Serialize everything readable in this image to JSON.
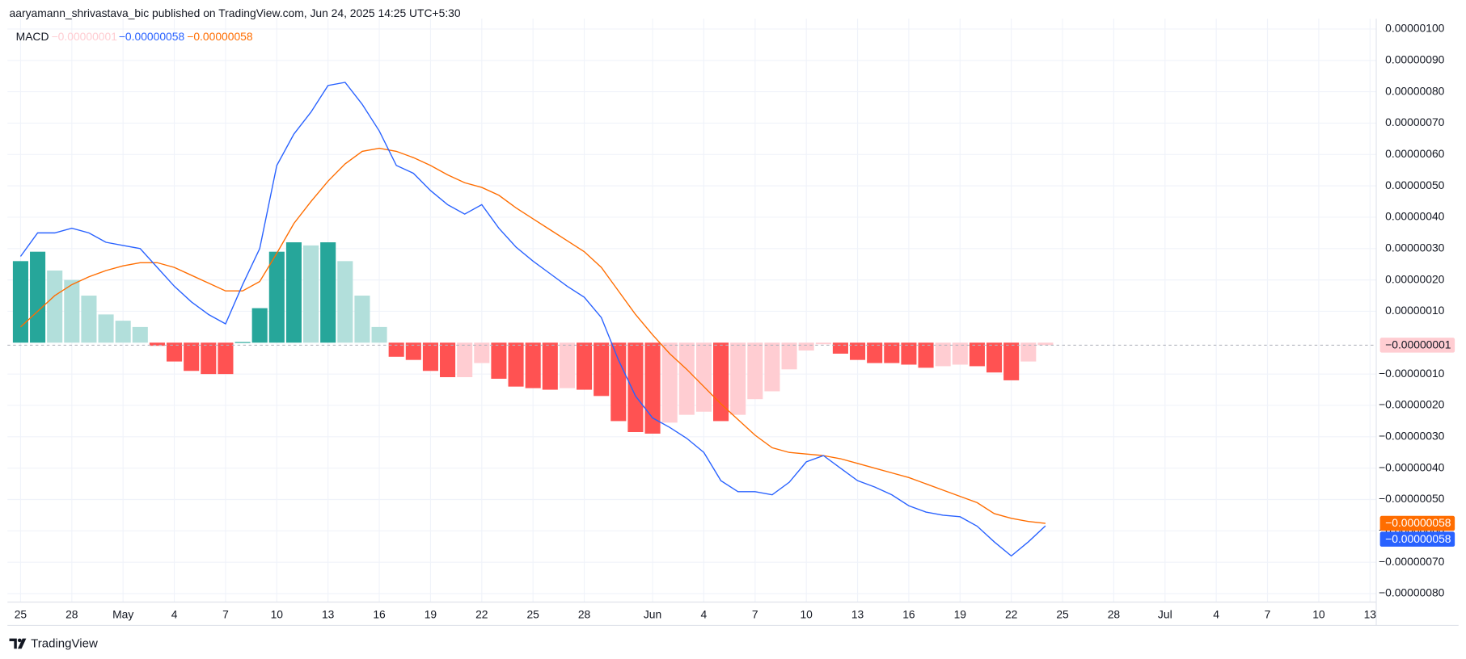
{
  "chart_data": {
    "type": "macd",
    "title": "aaryamann_shrivastava_bic published on TradingView.com, Jun 24, 2025 14:25 UTC+5:30",
    "indicator": "MACD",
    "brand": "TradingView",
    "categories": [
      "25",
      null,
      null,
      "28",
      null,
      null,
      "May",
      null,
      null,
      "4",
      null,
      null,
      "7",
      null,
      null,
      "10",
      null,
      null,
      "13",
      null,
      null,
      "16",
      null,
      null,
      "19",
      null,
      null,
      "22",
      null,
      null,
      "25",
      null,
      null,
      "28",
      null,
      null,
      null,
      "Jun",
      null,
      null,
      "4",
      null,
      null,
      "7",
      null,
      null,
      "10",
      null,
      null,
      "13",
      null,
      null,
      "16",
      null,
      null,
      "19",
      null,
      null,
      "22",
      null,
      null,
      "25",
      null,
      null,
      "28",
      null,
      null,
      "Jul",
      null,
      null,
      "4",
      null,
      null,
      "7",
      null,
      null,
      "10",
      null,
      null,
      "13"
    ],
    "ylim": [
      -8.27e-07,
      1.033e-06
    ],
    "yticks": [
      {
        "value": 1e-06,
        "label": "0.00000100"
      },
      {
        "value": 9e-07,
        "label": "0.00000090"
      },
      {
        "value": 8e-07,
        "label": "0.00000080"
      },
      {
        "value": 7e-07,
        "label": "0.00000070"
      },
      {
        "value": 6e-07,
        "label": "0.00000060"
      },
      {
        "value": 5e-07,
        "label": "0.00000050"
      },
      {
        "value": 4e-07,
        "label": "0.00000040"
      },
      {
        "value": 3e-07,
        "label": "0.00000030"
      },
      {
        "value": 2e-07,
        "label": "0.00000020"
      },
      {
        "value": 1e-07,
        "label": "0.00000010"
      },
      {
        "value": -1e-07,
        "label": "−0.00000010"
      },
      {
        "value": -2e-07,
        "label": "−0.00000020"
      },
      {
        "value": -3e-07,
        "label": "−0.00000030"
      },
      {
        "value": -4e-07,
        "label": "−0.00000040"
      },
      {
        "value": -5e-07,
        "label": "−0.00000050"
      },
      {
        "value": -6e-07,
        "label": "−0.00000060"
      },
      {
        "value": -7e-07,
        "label": "−0.00000070"
      },
      {
        "value": -8e-07,
        "label": "−0.00000080"
      }
    ],
    "grid": true,
    "histogram": {
      "last_label": "−0.00000001",
      "values": [
        2.6e-07,
        2.9e-07,
        2.3e-07,
        2e-07,
        1.5e-07,
        9e-08,
        7e-08,
        5e-08,
        -1e-08,
        -6e-08,
        -9e-08,
        -1e-07,
        -1e-07,
        2e-09,
        1.1e-07,
        2.9e-07,
        3.2e-07,
        3.1e-07,
        3.2e-07,
        2.6e-07,
        1.5e-07,
        5e-08,
        -4.5e-08,
        -5.5e-08,
        -9e-08,
        -1.1e-07,
        -1.1e-07,
        -6.5e-08,
        -1.15e-07,
        -1.4e-07,
        -1.45e-07,
        -1.5e-07,
        -1.45e-07,
        -1.5e-07,
        -1.7e-07,
        -2.5e-07,
        -2.85e-07,
        -2.9e-07,
        -2.55e-07,
        -2.3e-07,
        -2.2e-07,
        -2.5e-07,
        -2.3e-07,
        -1.8e-07,
        -1.55e-07,
        -8.5e-08,
        -2.5e-08,
        -5e-09,
        -3.5e-08,
        -5.5e-08,
        -6.5e-08,
        -6.5e-08,
        -7e-08,
        -8e-08,
        -7.5e-08,
        -7e-08,
        -7.5e-08,
        -9.5e-08,
        -1.2e-07,
        -6e-08,
        -8e-09,
        null,
        null,
        null,
        null,
        null,
        null,
        null,
        null,
        null,
        null,
        null,
        null,
        null,
        null,
        null,
        null,
        null,
        null,
        null
      ],
      "colors": [
        "#26a69a",
        "#26a69a",
        "#b2dfdb",
        "#b2dfdb",
        "#b2dfdb",
        "#b2dfdb",
        "#b2dfdb",
        "#b2dfdb",
        "#ff5252",
        "#ff5252",
        "#ff5252",
        "#ff5252",
        "#ff5252",
        "#26a69a",
        "#26a69a",
        "#26a69a",
        "#26a69a",
        "#b2dfdb",
        "#26a69a",
        "#b2dfdb",
        "#b2dfdb",
        "#b2dfdb",
        "#ff5252",
        "#ff5252",
        "#ff5252",
        "#ff5252",
        "#ffcdd2",
        "#ffcdd2",
        "#ff5252",
        "#ff5252",
        "#ff5252",
        "#ff5252",
        "#ffcdd2",
        "#ff5252",
        "#ff5252",
        "#ff5252",
        "#ff5252",
        "#ff5252",
        "#ffcdd2",
        "#ffcdd2",
        "#ffcdd2",
        "#ff5252",
        "#ffcdd2",
        "#ffcdd2",
        "#ffcdd2",
        "#ffcdd2",
        "#ffcdd2",
        "#ffcdd2",
        "#ff5252",
        "#ff5252",
        "#ff5252",
        "#ff5252",
        "#ff5252",
        "#ff5252",
        "#ffcdd2",
        "#ffcdd2",
        "#ff5252",
        "#ff5252",
        "#ff5252",
        "#ffcdd2",
        "#ffcdd2",
        null,
        null,
        null,
        null,
        null,
        null,
        null,
        null,
        null,
        null,
        null,
        null,
        null,
        null,
        null,
        null,
        null,
        null,
        null
      ]
    },
    "macd": {
      "color": "#2962ff",
      "last_label": "−0.00000058",
      "values": [
        2.75e-07,
        3.5e-07,
        3.5e-07,
        3.65e-07,
        3.5e-07,
        3.2e-07,
        3.1e-07,
        3e-07,
        2.4e-07,
        1.8e-07,
        1.3e-07,
        9e-08,
        6e-08,
        1.85e-07,
        3e-07,
        5.65e-07,
        6.65e-07,
        7.35e-07,
        8.2e-07,
        8.3e-07,
        7.6e-07,
        6.75e-07,
        5.65e-07,
        5.4e-07,
        4.85e-07,
        4.4e-07,
        4.1e-07,
        4.4e-07,
        3.65e-07,
        3.05e-07,
        2.6e-07,
        2.2e-07,
        1.8e-07,
        1.45e-07,
        8e-08,
        -5.5e-08,
        -1.7e-07,
        -2.4e-07,
        -2.7e-07,
        -3.05e-07,
        -3.5e-07,
        -4.4e-07,
        -4.75e-07,
        -4.75e-07,
        -4.85e-07,
        -4.45e-07,
        -3.8e-07,
        -3.6e-07,
        -4e-07,
        -4.4e-07,
        -4.6e-07,
        -4.85e-07,
        -5.2e-07,
        -5.4e-07,
        -5.5e-07,
        -5.55e-07,
        -5.85e-07,
        -6.35e-07,
        -6.8e-07,
        -6.35e-07,
        -5.84e-07,
        null,
        null,
        null,
        null,
        null,
        null,
        null,
        null,
        null,
        null,
        null,
        null,
        null,
        null,
        null,
        null,
        null,
        null,
        null
      ]
    },
    "signal": {
      "color": "#ff6d00",
      "last_label": "−0.00000058",
      "values": [
        5e-08,
        1e-07,
        1.5e-07,
        1.85e-07,
        2.1e-07,
        2.3e-07,
        2.45e-07,
        2.55e-07,
        2.55e-07,
        2.4e-07,
        2.15e-07,
        1.9e-07,
        1.65e-07,
        1.65e-07,
        1.95e-07,
        2.85e-07,
        3.8e-07,
        4.5e-07,
        5.15e-07,
        5.7e-07,
        6.1e-07,
        6.2e-07,
        6.1e-07,
        5.9e-07,
        5.65e-07,
        5.35e-07,
        5.1e-07,
        4.95e-07,
        4.7e-07,
        4.3e-07,
        3.95e-07,
        3.6e-07,
        3.25e-07,
        2.9e-07,
        2.4e-07,
        1.65e-07,
        9e-08,
        2.5e-08,
        -3.5e-08,
        -8.5e-08,
        -1.4e-07,
        -1.95e-07,
        -2.45e-07,
        -2.95e-07,
        -3.35e-07,
        -3.5e-07,
        -3.55e-07,
        -3.6e-07,
        -3.7e-07,
        -3.85e-07,
        -4e-07,
        -4.15e-07,
        -4.3e-07,
        -4.5e-07,
        -4.7e-07,
        -4.9e-07,
        -5.1e-07,
        -5.45e-07,
        -5.6e-07,
        -5.7e-07,
        -5.76e-07,
        null,
        null,
        null,
        null,
        null,
        null,
        null,
        null,
        null,
        null,
        null,
        null,
        null,
        null,
        null,
        null,
        null,
        null,
        null
      ]
    }
  }
}
